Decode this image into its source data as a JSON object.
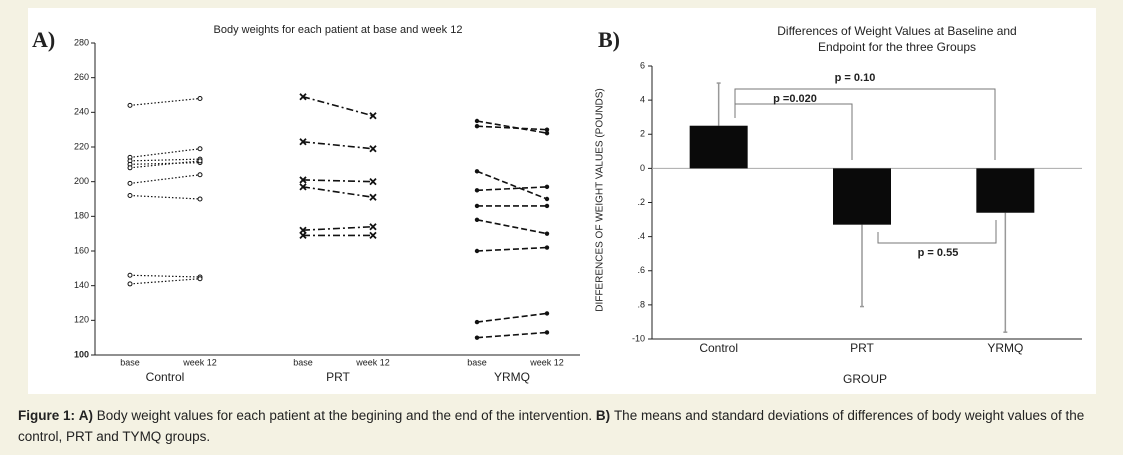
{
  "chart_data": [
    {
      "type": "paired-line",
      "panel": "A)",
      "title": "Body weights for each patient at base and week 12",
      "ylim": [
        100,
        280
      ],
      "yticks": [
        100,
        120,
        140,
        160,
        180,
        200,
        220,
        240,
        260,
        280
      ],
      "groups": [
        {
          "name": "Control",
          "timepoints": [
            "base",
            "week 12"
          ],
          "patients": [
            [
              244,
              248
            ],
            [
              214,
              219
            ],
            [
              212,
              213
            ],
            [
              210,
              211
            ],
            [
              208,
              212
            ],
            [
              199,
              204
            ],
            [
              192,
              190
            ],
            [
              146,
              145
            ],
            [
              141,
              144
            ]
          ]
        },
        {
          "name": "PRT",
          "timepoints": [
            "base",
            "week 12"
          ],
          "patients": [
            [
              249,
              238
            ],
            [
              223,
              219
            ],
            [
              201,
              200
            ],
            [
              197,
              191
            ],
            [
              172,
              174
            ],
            [
              169,
              169
            ]
          ]
        },
        {
          "name": "YRMQ",
          "timepoints": [
            "base",
            "week 12"
          ],
          "patients": [
            [
              235,
              228
            ],
            [
              232,
              230
            ],
            [
              206,
              190
            ],
            [
              195,
              197
            ],
            [
              186,
              186
            ],
            [
              178,
              170
            ],
            [
              160,
              162
            ],
            [
              119,
              124
            ],
            [
              110,
              113
            ]
          ]
        }
      ]
    },
    {
      "type": "bar",
      "panel": "B)",
      "title": [
        "Differences of Weight Values at Baseline and",
        "Endpoint for the  three Groups"
      ],
      "xlabel": "GROUP",
      "ylabel": "DIFFERENCES OF WEIGHT VALUES (POUNDS)",
      "categories": [
        "Control",
        "PRT",
        "YRMQ"
      ],
      "values": [
        2.5,
        -3.3,
        -2.6
      ],
      "errors": [
        2.5,
        4.8,
        7.0
      ],
      "color": "#0a0a0a",
      "error_color": "#999999",
      "ylim": [
        -10,
        6
      ],
      "yticks": [
        6,
        4,
        2,
        0,
        {
          "value": -2,
          "label": ".2"
        },
        {
          "value": -4,
          "label": ".4"
        },
        {
          "value": -6,
          "label": ".6"
        },
        {
          "value": -8,
          "label": ".8"
        },
        -10
      ],
      "annotations": [
        "p = 0.10",
        "p =0.020",
        "p = 0.55"
      ]
    }
  ],
  "caption": [
    {
      "text": "Figure 1:",
      "bold": true
    },
    {
      "text": "A)",
      "bold": true
    },
    {
      "text": "Body weight values for each patient at the begining and the end of the intervention.",
      "bold": false
    },
    {
      "text": "B)",
      "bold": true
    },
    {
      "text": "The means and standard deviations of differences of body weight values of the control, PRT and TYMQ groups.",
      "bold": false
    }
  ]
}
